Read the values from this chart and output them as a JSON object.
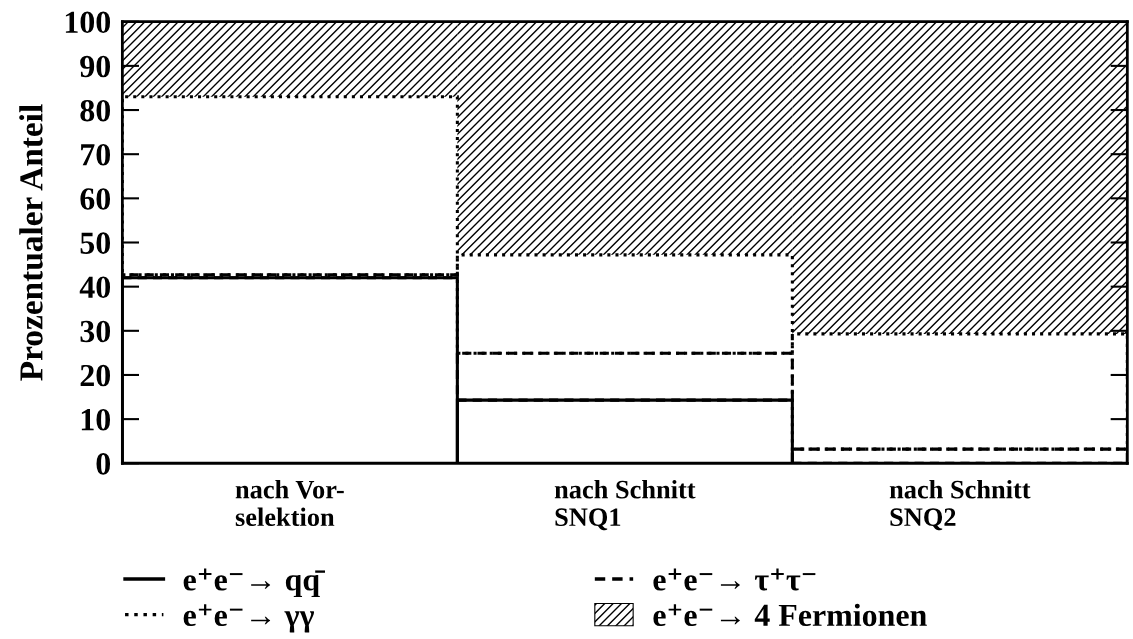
{
  "chart_data": {
    "type": "bar",
    "stacked": true,
    "ylabel": "Prozentualer Anteil",
    "categories": [
      "nach Vor-\nselektion",
      "nach Schnitt\nSNQ1",
      "nach Schnitt\nSNQ2"
    ],
    "ylim": [
      0,
      100
    ],
    "yticks": [
      0,
      10,
      20,
      30,
      40,
      50,
      60,
      70,
      80,
      90,
      100
    ],
    "legend": "bottom",
    "series": [
      {
        "name": "e⁺e⁻→ qq̄",
        "color": "#000000",
        "line_style": "solid",
        "values": [
          42,
          14.3,
          0
        ]
      },
      {
        "name": "e⁺e⁻→ τ⁺τ⁻",
        "color": "#000000",
        "line_style": "dashed",
        "values": [
          0.7,
          10.6,
          3.2
        ]
      },
      {
        "name": "e⁺e⁻→ γγ",
        "color": "#000000",
        "line_style": "dotted",
        "values": [
          40.3,
          22.3,
          26.1
        ]
      },
      {
        "name": "e⁺e⁻→ 4 Fermionen",
        "color": "#000000",
        "values": [
          17,
          52.8,
          70.7
        ]
      }
    ]
  }
}
